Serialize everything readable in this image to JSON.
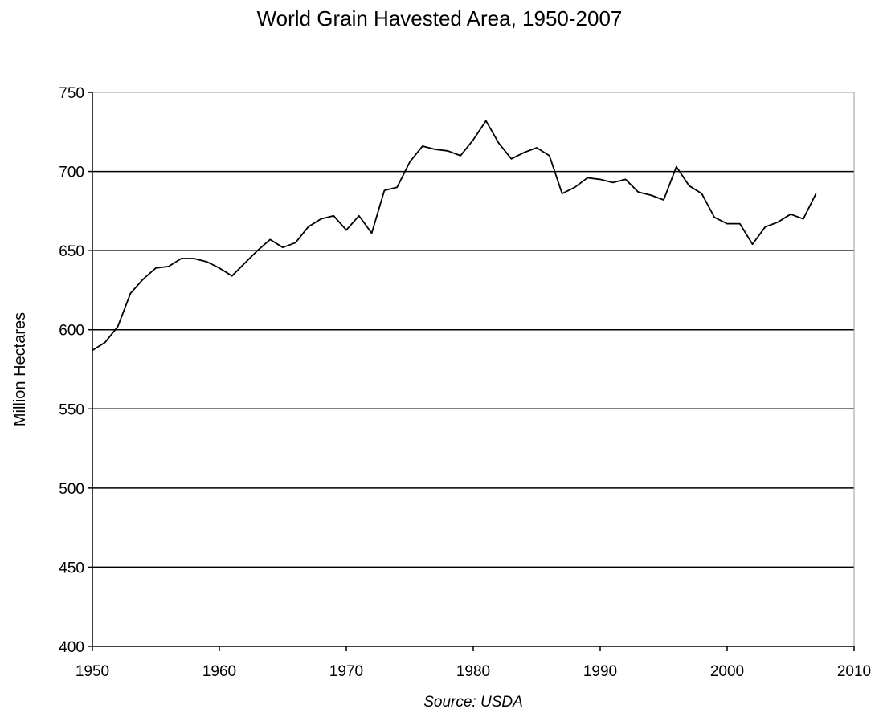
{
  "chart_data": {
    "type": "line",
    "title": "World Grain Havested Area, 1950-2007",
    "xlabel": "",
    "ylabel": "Million Hectares",
    "source": "Source: USDA",
    "xlim": [
      1950,
      2010
    ],
    "ylim": [
      400,
      750
    ],
    "x_ticks": [
      "1950",
      "1960",
      "1970",
      "1980",
      "1990",
      "2000",
      "2010"
    ],
    "y_ticks": [
      "400",
      "450",
      "500",
      "550",
      "600",
      "650",
      "700",
      "750"
    ],
    "grid": "horizontal",
    "legend": "none",
    "line_color": "#000000",
    "series": [
      {
        "x": [
          1950,
          1951,
          1952,
          1953,
          1954,
          1955,
          1956,
          1957,
          1958,
          1959,
          1960,
          1961,
          1962,
          1963,
          1964,
          1965,
          1966,
          1967,
          1968,
          1969,
          1970,
          1971,
          1972,
          1973,
          1974,
          1975,
          1976,
          1977,
          1978,
          1979,
          1980,
          1981,
          1982,
          1983,
          1984,
          1985,
          1986,
          1987,
          1988,
          1989,
          1990,
          1991,
          1992,
          1993,
          1994,
          1995,
          1996,
          1997,
          1998,
          1999,
          2000,
          2001,
          2002,
          2003,
          2004,
          2005,
          2006,
          2007
        ],
        "values": [
          587,
          592,
          602,
          623,
          632,
          639,
          640,
          645,
          645,
          643,
          639,
          634,
          642,
          650,
          657,
          652,
          655,
          665,
          670,
          672,
          663,
          672,
          661,
          688,
          690,
          706,
          716,
          714,
          713,
          710,
          720,
          732,
          718,
          708,
          712,
          715,
          710,
          686,
          690,
          696,
          695,
          693,
          695,
          687,
          685,
          682,
          703,
          691,
          686,
          671,
          667,
          667,
          654,
          665,
          668,
          673,
          670,
          686
        ]
      }
    ]
  }
}
